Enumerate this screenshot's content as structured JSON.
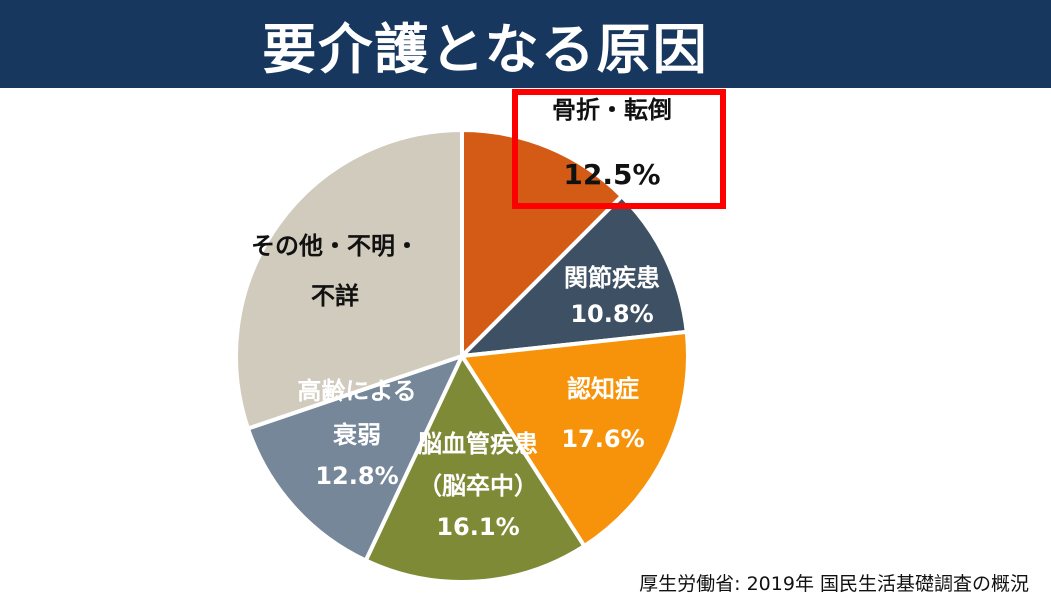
{
  "title": "要介護となる原因",
  "source": "厚生労働省: 2019年 国民生活基礎調査の概況",
  "colors": {
    "title_bar": "#17375e",
    "highlight_border": "#ff0000"
  },
  "chart_data": {
    "type": "pie",
    "title": "要介護となる原因",
    "slices": [
      {
        "label": [
          "骨折・転倒"
        ],
        "value": 12.5,
        "display": "12.5%",
        "color": "#d45b16",
        "text_color": "#111111",
        "highlighted": true
      },
      {
        "label": [
          "関節疾患"
        ],
        "value": 10.8,
        "display": "10.8%",
        "color": "#3e5063",
        "text_color": "#ffffff"
      },
      {
        "label": [
          "認知症"
        ],
        "value": 17.6,
        "display": "17.6%",
        "color": "#f7930a",
        "text_color": "#ffffff"
      },
      {
        "label": [
          "脳血管疾患",
          "（脳卒中）"
        ],
        "value": 16.1,
        "display": "16.1%",
        "color": "#7f8a37",
        "text_color": "#ffffff"
      },
      {
        "label": [
          "高齢による",
          "衰弱"
        ],
        "value": 12.8,
        "display": "12.8%",
        "color": "#76879a",
        "text_color": "#ffffff"
      },
      {
        "label": [
          "その他・不明・",
          "不詳"
        ],
        "value": 30.2,
        "display": "",
        "color": "#d1cbbd",
        "text_color": "#111111"
      }
    ]
  }
}
